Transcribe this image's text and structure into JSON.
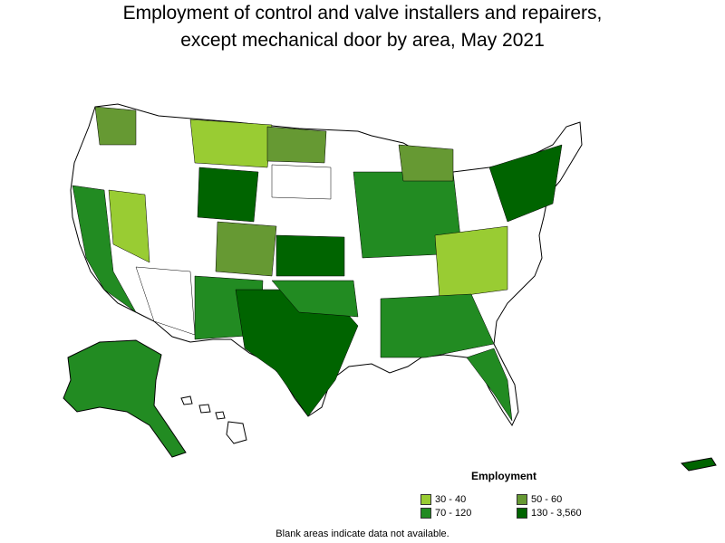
{
  "header": {
    "title_line1": "Employment of control and valve installers and repairers,",
    "title_line2": "except mechanical door by area, May 2021"
  },
  "legend": {
    "title": "Employment",
    "items": [
      {
        "label": "30 - 40",
        "color": "#99cc33"
      },
      {
        "label": "50 - 60",
        "color": "#669933"
      },
      {
        "label": "70 - 120",
        "color": "#228b22"
      },
      {
        "label": "130 - 3,560",
        "color": "#006400"
      }
    ]
  },
  "footer": {
    "note": "Blank areas indicate data not available."
  },
  "colors": {
    "border": "#000000",
    "no_data": "#ffffff"
  }
}
